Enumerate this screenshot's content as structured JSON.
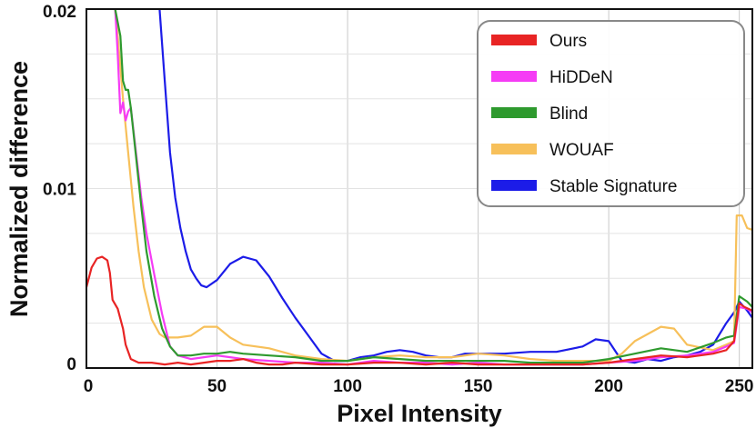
{
  "chart_data": {
    "type": "line",
    "title": "",
    "xlabel": "Pixel Intensity",
    "ylabel": "Normalized difference",
    "xlim": [
      0,
      255
    ],
    "ylim": [
      0,
      0.02
    ],
    "xticks": [
      0,
      50,
      100,
      150,
      200,
      250
    ],
    "xtick_labels": [
      "0",
      "50",
      "100",
      "150",
      "200",
      "250"
    ],
    "yticks": [
      0,
      0.01,
      0.02
    ],
    "ytick_labels": [
      "0",
      "0.01",
      "0.02"
    ],
    "grid": true,
    "legend_position": "top-right",
    "series": [
      {
        "name": "Ours",
        "color": "#e82424",
        "points": [
          [
            0,
            0.0045
          ],
          [
            2,
            0.0056
          ],
          [
            4,
            0.0061
          ],
          [
            6,
            0.0062
          ],
          [
            8,
            0.006
          ],
          [
            9,
            0.0053
          ],
          [
            10,
            0.0038
          ],
          [
            12,
            0.0033
          ],
          [
            14,
            0.0022
          ],
          [
            15,
            0.0013
          ],
          [
            17,
            0.0005
          ],
          [
            20,
            0.0003
          ],
          [
            25,
            0.0003
          ],
          [
            30,
            0.0002
          ],
          [
            35,
            0.0003
          ],
          [
            40,
            0.0002
          ],
          [
            45,
            0.0003
          ],
          [
            50,
            0.0004
          ],
          [
            55,
            0.0004
          ],
          [
            60,
            0.0005
          ],
          [
            65,
            0.0003
          ],
          [
            70,
            0.0002
          ],
          [
            75,
            0.0002
          ],
          [
            80,
            0.0003
          ],
          [
            90,
            0.0002
          ],
          [
            100,
            0.0002
          ],
          [
            110,
            0.0003
          ],
          [
            120,
            0.0003
          ],
          [
            130,
            0.0002
          ],
          [
            140,
            0.0003
          ],
          [
            150,
            0.0002
          ],
          [
            160,
            0.0002
          ],
          [
            170,
            0.0002
          ],
          [
            180,
            0.0002
          ],
          [
            190,
            0.0002
          ],
          [
            200,
            0.0003
          ],
          [
            210,
            0.0005
          ],
          [
            220,
            0.0007
          ],
          [
            230,
            0.0006
          ],
          [
            240,
            0.0008
          ],
          [
            245,
            0.001
          ],
          [
            248,
            0.0015
          ],
          [
            250,
            0.0036
          ],
          [
            252,
            0.0034
          ],
          [
            255,
            0.0032
          ]
        ]
      },
      {
        "name": "HiDDeN",
        "color": "#f53cf5",
        "points": [
          [
            11,
            0.02
          ],
          [
            12,
            0.0175
          ],
          [
            13,
            0.0142
          ],
          [
            14,
            0.0148
          ],
          [
            15,
            0.0138
          ],
          [
            16,
            0.0143
          ],
          [
            17,
            0.0145
          ],
          [
            19,
            0.012
          ],
          [
            21,
            0.0095
          ],
          [
            23,
            0.0075
          ],
          [
            26,
            0.0052
          ],
          [
            29,
            0.003
          ],
          [
            32,
            0.0012
          ],
          [
            35,
            0.0007
          ],
          [
            40,
            0.0005
          ],
          [
            45,
            0.0006
          ],
          [
            50,
            0.0007
          ],
          [
            55,
            0.0006
          ],
          [
            60,
            0.0005
          ],
          [
            70,
            0.0004
          ],
          [
            80,
            0.0003
          ],
          [
            90,
            0.0003
          ],
          [
            100,
            0.0002
          ],
          [
            110,
            0.0004
          ],
          [
            120,
            0.0003
          ],
          [
            130,
            0.0003
          ],
          [
            140,
            0.0002
          ],
          [
            150,
            0.0003
          ],
          [
            160,
            0.0002
          ],
          [
            170,
            0.0002
          ],
          [
            180,
            0.0002
          ],
          [
            190,
            0.0002
          ],
          [
            200,
            0.0003
          ],
          [
            210,
            0.0004
          ],
          [
            220,
            0.0006
          ],
          [
            230,
            0.0007
          ],
          [
            240,
            0.0009
          ],
          [
            245,
            0.0012
          ],
          [
            248,
            0.0014
          ],
          [
            250,
            0.0034
          ],
          [
            253,
            0.0033
          ],
          [
            255,
            0.0031
          ]
        ]
      },
      {
        "name": "Blind",
        "color": "#2e9a2e",
        "points": [
          [
            11,
            0.02
          ],
          [
            13,
            0.0185
          ],
          [
            14,
            0.016
          ],
          [
            15,
            0.0155
          ],
          [
            16,
            0.0155
          ],
          [
            17,
            0.0145
          ],
          [
            19,
            0.0118
          ],
          [
            21,
            0.009
          ],
          [
            23,
            0.0065
          ],
          [
            26,
            0.004
          ],
          [
            29,
            0.0022
          ],
          [
            32,
            0.0012
          ],
          [
            35,
            0.0007
          ],
          [
            40,
            0.0007
          ],
          [
            45,
            0.0008
          ],
          [
            50,
            0.0008
          ],
          [
            55,
            0.0009
          ],
          [
            60,
            0.0008
          ],
          [
            70,
            0.0007
          ],
          [
            80,
            0.0006
          ],
          [
            90,
            0.0004
          ],
          [
            100,
            0.0004
          ],
          [
            110,
            0.0006
          ],
          [
            120,
            0.0005
          ],
          [
            130,
            0.0004
          ],
          [
            140,
            0.0004
          ],
          [
            150,
            0.0004
          ],
          [
            160,
            0.0004
          ],
          [
            170,
            0.0003
          ],
          [
            180,
            0.0003
          ],
          [
            190,
            0.0003
          ],
          [
            200,
            0.0005
          ],
          [
            210,
            0.0008
          ],
          [
            220,
            0.0011
          ],
          [
            230,
            0.0009
          ],
          [
            240,
            0.0014
          ],
          [
            245,
            0.0017
          ],
          [
            248,
            0.0018
          ],
          [
            250,
            0.004
          ],
          [
            253,
            0.0037
          ],
          [
            255,
            0.0034
          ]
        ]
      },
      {
        "name": "WOUAF",
        "color": "#f7c05a",
        "points": [
          [
            11,
            0.02
          ],
          [
            12,
            0.0185
          ],
          [
            14,
            0.015
          ],
          [
            16,
            0.012
          ],
          [
            18,
            0.009
          ],
          [
            20,
            0.0065
          ],
          [
            22,
            0.0045
          ],
          [
            25,
            0.0027
          ],
          [
            28,
            0.0019
          ],
          [
            30,
            0.0017
          ],
          [
            35,
            0.0017
          ],
          [
            40,
            0.0018
          ],
          [
            45,
            0.0023
          ],
          [
            50,
            0.0023
          ],
          [
            55,
            0.0017
          ],
          [
            60,
            0.0013
          ],
          [
            70,
            0.0011
          ],
          [
            80,
            0.0007
          ],
          [
            90,
            0.0005
          ],
          [
            100,
            0.0004
          ],
          [
            110,
            0.0006
          ],
          [
            120,
            0.0007
          ],
          [
            130,
            0.0006
          ],
          [
            140,
            0.0006
          ],
          [
            150,
            0.0008
          ],
          [
            160,
            0.0007
          ],
          [
            170,
            0.0005
          ],
          [
            180,
            0.0004
          ],
          [
            190,
            0.0004
          ],
          [
            200,
            0.0004
          ],
          [
            205,
            0.0008
          ],
          [
            210,
            0.0015
          ],
          [
            215,
            0.0019
          ],
          [
            220,
            0.0023
          ],
          [
            225,
            0.0022
          ],
          [
            230,
            0.0013
          ],
          [
            240,
            0.001
          ],
          [
            245,
            0.0013
          ],
          [
            248,
            0.0015
          ],
          [
            249,
            0.0085
          ],
          [
            251,
            0.0085
          ],
          [
            253,
            0.0078
          ],
          [
            255,
            0.0077
          ]
        ]
      },
      {
        "name": "Stable Signature",
        "color": "#1c1ce8",
        "points": [
          [
            28,
            0.02
          ],
          [
            30,
            0.016
          ],
          [
            32,
            0.012
          ],
          [
            34,
            0.0095
          ],
          [
            36,
            0.0078
          ],
          [
            38,
            0.0065
          ],
          [
            40,
            0.0055
          ],
          [
            42,
            0.005
          ],
          [
            44,
            0.0046
          ],
          [
            46,
            0.0045
          ],
          [
            50,
            0.0049
          ],
          [
            55,
            0.0058
          ],
          [
            60,
            0.0062
          ],
          [
            65,
            0.006
          ],
          [
            70,
            0.0051
          ],
          [
            75,
            0.0039
          ],
          [
            80,
            0.0028
          ],
          [
            85,
            0.0018
          ],
          [
            90,
            0.0008
          ],
          [
            95,
            0.0004
          ],
          [
            100,
            0.0004
          ],
          [
            105,
            0.0006
          ],
          [
            110,
            0.0007
          ],
          [
            115,
            0.0009
          ],
          [
            120,
            0.001
          ],
          [
            125,
            0.0009
          ],
          [
            130,
            0.0007
          ],
          [
            135,
            0.0006
          ],
          [
            140,
            0.0006
          ],
          [
            145,
            0.0008
          ],
          [
            150,
            0.0008
          ],
          [
            160,
            0.0008
          ],
          [
            170,
            0.0009
          ],
          [
            180,
            0.0009
          ],
          [
            190,
            0.0012
          ],
          [
            195,
            0.0016
          ],
          [
            200,
            0.0015
          ],
          [
            205,
            0.0004
          ],
          [
            210,
            0.0003
          ],
          [
            215,
            0.0005
          ],
          [
            220,
            0.0004
          ],
          [
            225,
            0.0006
          ],
          [
            230,
            0.0007
          ],
          [
            235,
            0.0009
          ],
          [
            240,
            0.0013
          ],
          [
            245,
            0.0025
          ],
          [
            248,
            0.0031
          ],
          [
            250,
            0.0037
          ],
          [
            253,
            0.0032
          ],
          [
            255,
            0.0028
          ]
        ]
      }
    ]
  }
}
